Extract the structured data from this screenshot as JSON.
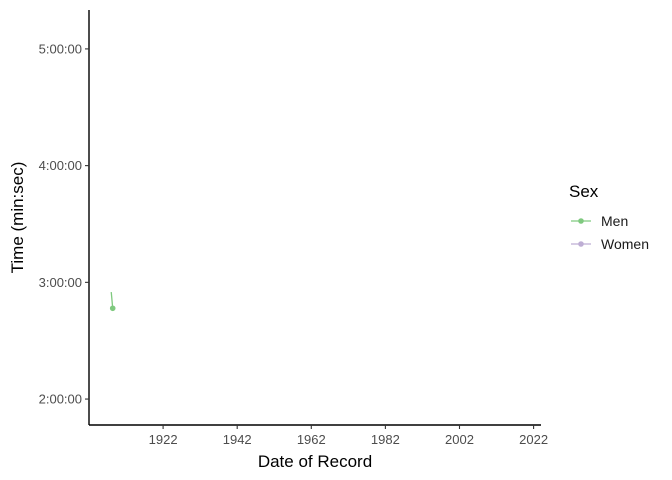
{
  "chart_data": {
    "type": "line",
    "xlabel": "Date of Record",
    "ylabel": "Time (min:sec)",
    "x_ticks": [
      1922,
      1942,
      1962,
      1982,
      2002,
      2022
    ],
    "x_range": [
      1902,
      2024
    ],
    "y_ticks": [
      {
        "label": "2:00:00",
        "seconds": 7200
      },
      {
        "label": "3:00:00",
        "seconds": 10800
      },
      {
        "label": "4:00:00",
        "seconds": 14400
      },
      {
        "label": "5:00:00",
        "seconds": 18000
      }
    ],
    "y_range": [
      6400,
      19200
    ],
    "grid": false,
    "legend": {
      "title": "Sex",
      "placement": "right",
      "entries": [
        {
          "name": "Men",
          "color": "#7fc97f"
        },
        {
          "name": "Women",
          "color": "#beaed4"
        }
      ]
    },
    "series": [
      {
        "name": "Men",
        "color": "#7fc97f",
        "points": [
          {
            "x": 1908.0,
            "y": 10500
          },
          {
            "x": 1908.1,
            "y": 10380
          },
          {
            "x": 1908.4,
            "y": 10000
          }
        ],
        "markers": [
          {
            "x": 1908.4,
            "y": 10000
          }
        ]
      },
      {
        "name": "Women",
        "color": "#beaed4",
        "points": [],
        "markers": []
      }
    ]
  }
}
